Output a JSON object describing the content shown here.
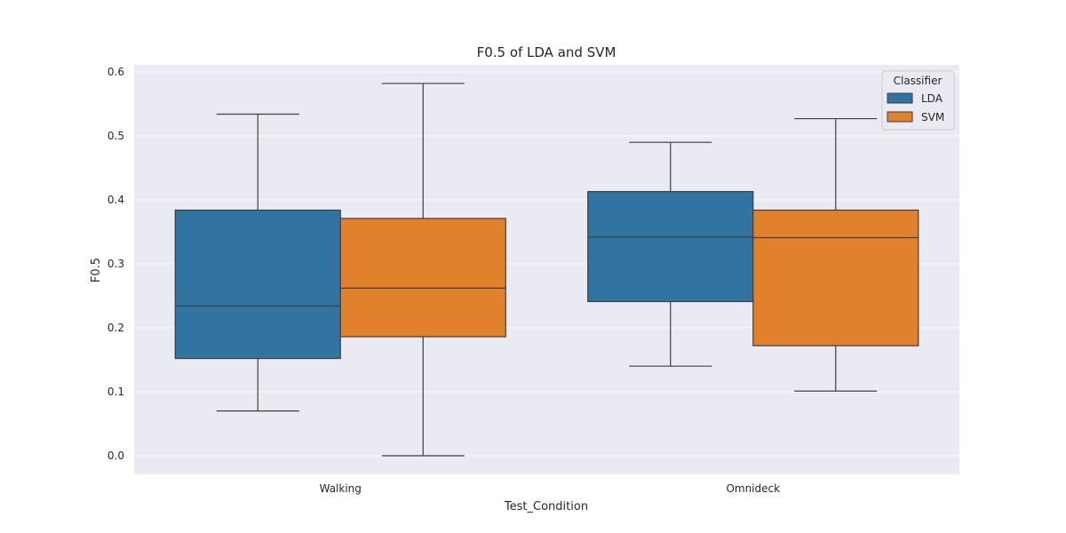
{
  "chart_data": {
    "type": "box",
    "title": "F0.5 of LDA and SVM",
    "xlabel": "Test_Condition",
    "ylabel": "F0.5",
    "categories": [
      "Walking",
      "Omnideck"
    ],
    "ylim": [
      -0.03,
      0.61
    ],
    "yticks": [
      0.0,
      0.1,
      0.2,
      0.3,
      0.4,
      0.5,
      0.6
    ],
    "ytick_labels": [
      "0.0",
      "0.1",
      "0.2",
      "0.3",
      "0.4",
      "0.5",
      "0.6"
    ],
    "grid": true,
    "legend": {
      "title": "Classifier",
      "position": "top-right"
    },
    "series": [
      {
        "name": "LDA",
        "color": "#3274a1",
        "boxes": [
          {
            "min": 0.07,
            "q1": 0.152,
            "median": 0.234,
            "q3": 0.384,
            "max": 0.534
          },
          {
            "min": 0.14,
            "q1": 0.241,
            "median": 0.342,
            "q3": 0.413,
            "max": 0.49
          }
        ]
      },
      {
        "name": "SVM",
        "color": "#e1812c",
        "boxes": [
          {
            "min": 0.0,
            "q1": 0.186,
            "median": 0.262,
            "q3": 0.371,
            "max": 0.582
          },
          {
            "min": 0.101,
            "q1": 0.172,
            "median": 0.341,
            "q3": 0.384,
            "max": 0.527
          }
        ]
      }
    ]
  }
}
